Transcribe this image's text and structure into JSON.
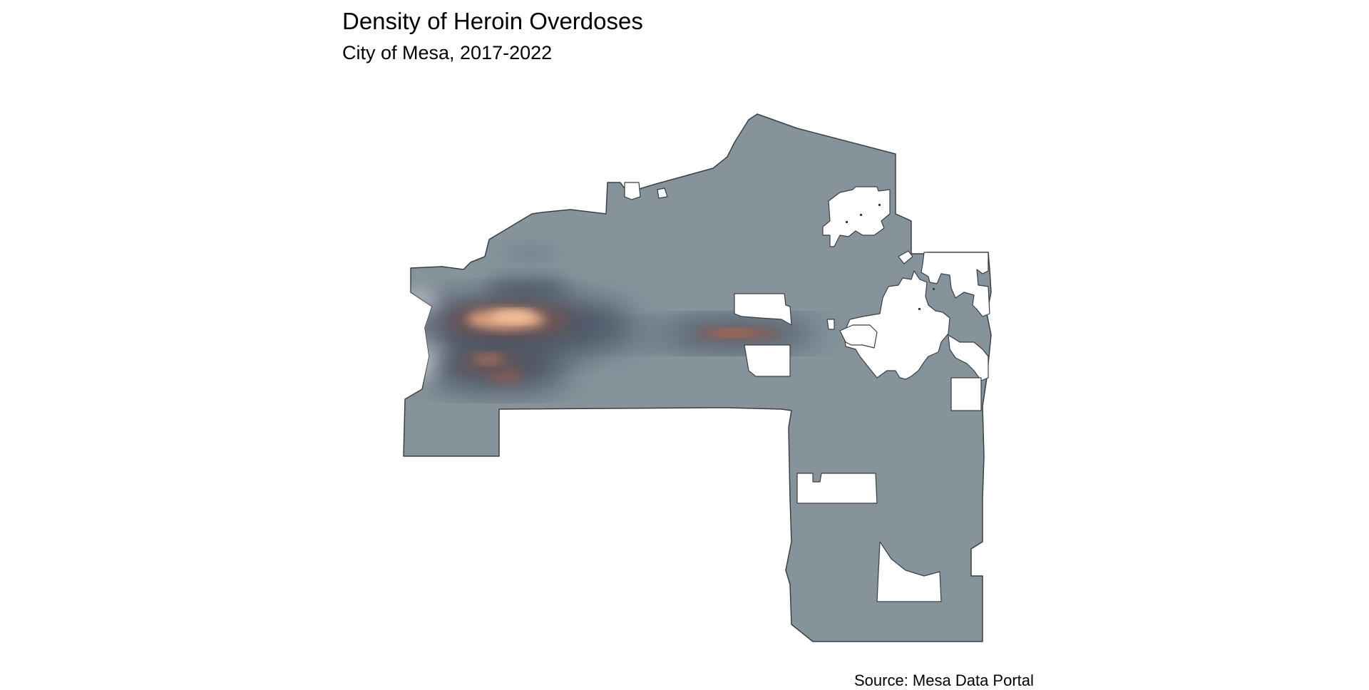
{
  "title": "Density of Heroin Overdoses",
  "subtitle": "City of Mesa, 2017-2022",
  "caption": "Source: Mesa Data Portal",
  "colors": {
    "city_fill": "#87939b",
    "city_outline": "#3a3f44",
    "hole_fill": "#ffffff",
    "density_low": "#eef3f5",
    "density_mid": "#3a4556",
    "density_high": "#f6c9a2"
  }
}
